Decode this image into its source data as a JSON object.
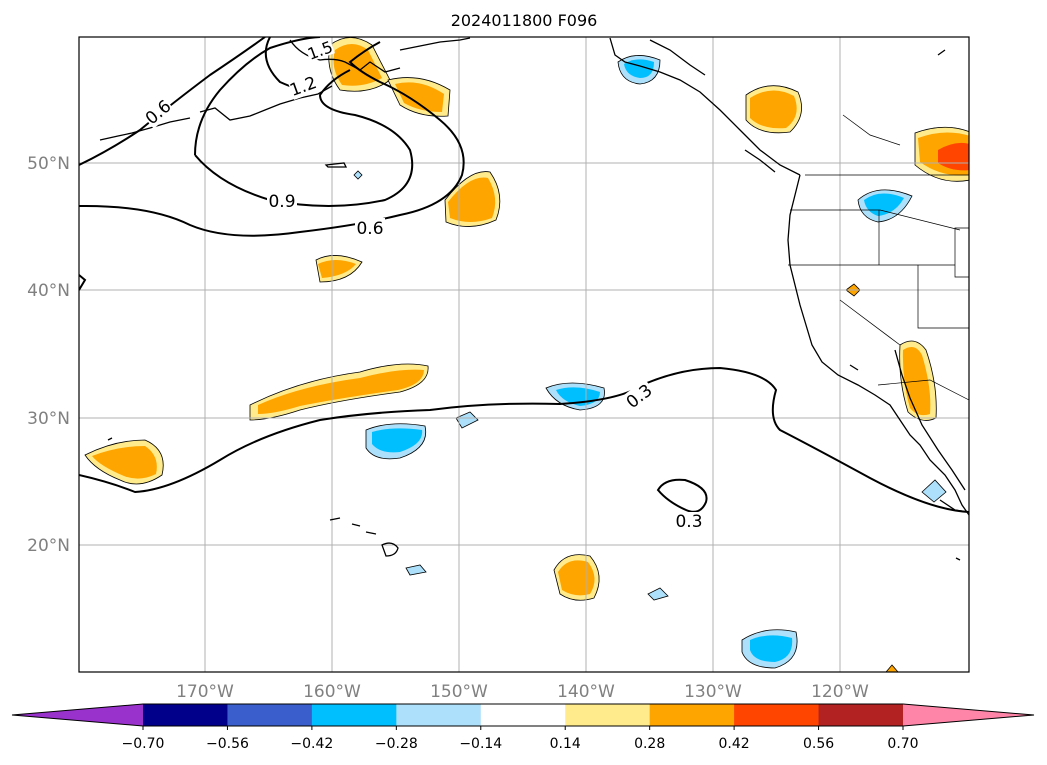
{
  "title": "2024011800 F096",
  "lat_labels": [
    "50°N",
    "40°N",
    "30°N",
    "20°N"
  ],
  "lon_labels": [
    "170°W",
    "160°W",
    "150°W",
    "140°W",
    "130°W",
    "120°W"
  ],
  "contour_labels": [
    "0.6",
    "1.2",
    "1.5",
    "0.9",
    "0.6",
    "0.3",
    "0.3"
  ],
  "colorbar": {
    "ticks": [
      "−0.70",
      "−0.56",
      "−0.42",
      "−0.28",
      "−0.14",
      "0.14",
      "0.28",
      "0.42",
      "0.56",
      "0.70"
    ],
    "colors": [
      "#9932CC",
      "#00008B",
      "#3A5FCD",
      "#00BFFF",
      "#ADE0FA",
      "#FFFFFF",
      "#FFEB8C",
      "#FFA500",
      "#FF4500",
      "#B22222",
      "#FF85A8"
    ]
  }
}
